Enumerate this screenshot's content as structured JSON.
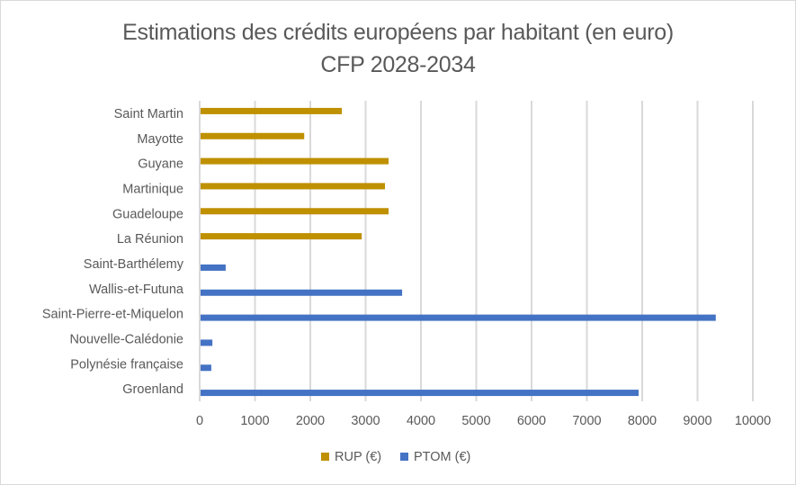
{
  "chart_data": {
    "type": "bar",
    "orientation": "horizontal",
    "title": "Estimations des crédits européens par habitant (en euro)",
    "subtitle": "CFP 2028-2034",
    "xlabel": "",
    "ylabel": "",
    "xlim": [
      0,
      10000
    ],
    "x_ticks": [
      "0",
      "1000",
      "2000",
      "3000",
      "4000",
      "5000",
      "6000",
      "7000",
      "8000",
      "9000",
      "10000"
    ],
    "grid": true,
    "legend_position": "bottom",
    "categories": [
      "Saint Martin",
      "Mayotte",
      "Guyane",
      "Martinique",
      "Guadeloupe",
      "La Réunion",
      "Saint-Barthélemy",
      "Wallis-et-Futuna",
      "Saint-Pierre-et-Miquelon",
      "Nouvelle-Calédonie",
      "Polynésie française",
      "Groenland"
    ],
    "series": [
      {
        "name": "RUP (€)",
        "color": "#BF9000",
        "values": [
          2570,
          1890,
          3415,
          3350,
          3415,
          2930,
          null,
          null,
          null,
          null,
          null,
          null
        ]
      },
      {
        "name": "PTOM (€)",
        "color": "#4472C4",
        "values": [
          null,
          null,
          null,
          null,
          null,
          null,
          470,
          3660,
          9330,
          230,
          210,
          7935
        ]
      }
    ]
  },
  "colors": {
    "gridline": "#d9d9d9",
    "text": "#595959"
  }
}
